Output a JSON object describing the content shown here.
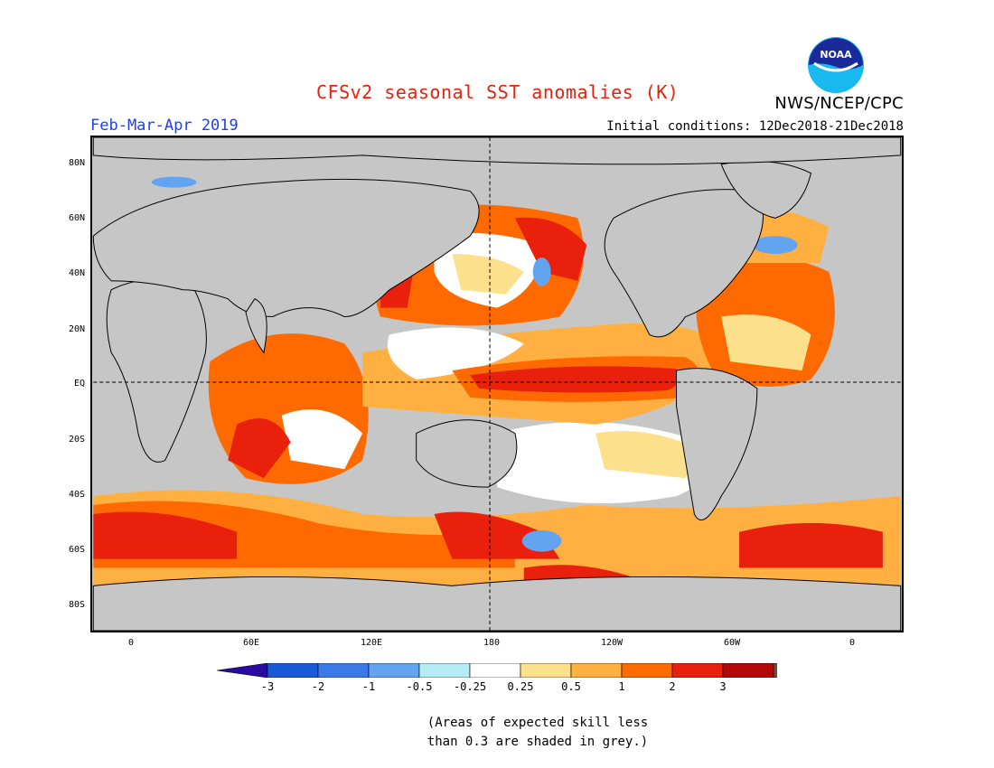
{
  "header": {
    "title": "CFSv2 seasonal SST anomalies (K)",
    "season": "Feb-Mar-Apr 2019",
    "initial_conditions": "Initial conditions: 12Dec2018-21Dec2018",
    "agency": "NWS/NCEP/CPC",
    "logo_text": "NOAA"
  },
  "map": {
    "lat_labels": [
      "80N",
      "60N",
      "40N",
      "20N",
      "EQ",
      "20S",
      "40S",
      "60S",
      "80S"
    ],
    "lon_labels": [
      "0",
      "60E",
      "120E",
      "180",
      "120W",
      "60W",
      "0"
    ],
    "land_color": "#c6c6c6",
    "low_skill_color": "#c6c6c6"
  },
  "colorbar": {
    "labels": [
      "-3",
      "-2",
      "-1",
      "-0.5",
      "-0.25",
      "0.25",
      "0.5",
      "1",
      "2",
      "3"
    ],
    "colors": [
      "#2a0aa0",
      "#1a5ad8",
      "#3a7ae8",
      "#62a4f0",
      "#b4ecf4",
      "#ffffff",
      "#fde08c",
      "#ffb040",
      "#ff6a00",
      "#e8200c",
      "#b40808",
      "#7a4838"
    ]
  },
  "footnote": {
    "line1": "(Areas of expected skill less",
    "line2": "than 0.3 are shaded in grey.)"
  }
}
